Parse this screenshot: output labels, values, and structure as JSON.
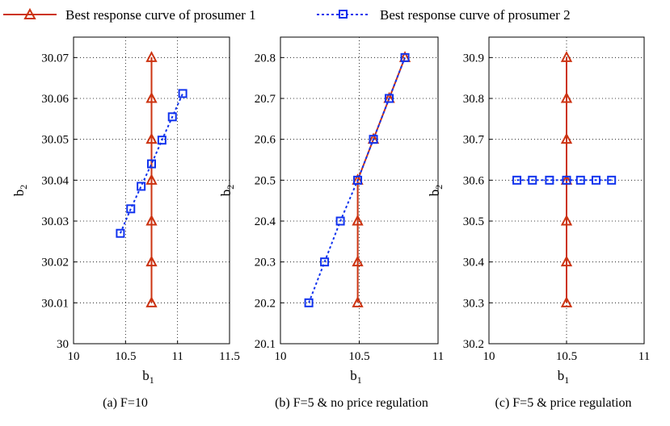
{
  "legend": {
    "entries": [
      {
        "label": "Best response curve of prosumer 1",
        "color": "#cc3311",
        "marker": "triangle",
        "line": "solid"
      },
      {
        "label": "Best response curve of prosumer 2",
        "color": "#1133ee",
        "marker": "square",
        "line": "dotted"
      }
    ]
  },
  "chart_data": [
    {
      "type": "line",
      "caption": "(a) F=10",
      "xlabel": "b",
      "xlabel_sub": "1",
      "ylabel": "b",
      "ylabel_sub": "2",
      "xlim": [
        10,
        11.5
      ],
      "ylim": [
        30,
        30.075
      ],
      "xticks": [
        10,
        10.5,
        11,
        11.5
      ],
      "xtick_labels": [
        "10",
        "10.5",
        "11",
        "11.5"
      ],
      "yticks": [
        30,
        30.01,
        30.02,
        30.03,
        30.04,
        30.05,
        30.06,
        30.07
      ],
      "ytick_labels": [
        "30",
        "30.01",
        "30.02",
        "30.03",
        "30.04",
        "30.05",
        "30.06",
        "30.07"
      ],
      "grid": true,
      "series": [
        {
          "name": "Best response curve of prosumer 1",
          "x": [
            10.75,
            10.75,
            10.75,
            10.75,
            10.75,
            10.75,
            10.75
          ],
          "y": [
            30.01,
            30.02,
            30.03,
            30.04,
            30.05,
            30.06,
            30.07
          ]
        },
        {
          "name": "Best response curve of prosumer 2",
          "x": [
            10.45,
            10.55,
            10.65,
            10.75,
            10.85,
            10.95,
            11.05
          ],
          "y": [
            30.027,
            30.033,
            30.0385,
            30.044,
            30.0498,
            30.0555,
            30.0612
          ]
        }
      ]
    },
    {
      "type": "line",
      "caption": "(b) F=5 & no price regulation",
      "xlabel": "b",
      "xlabel_sub": "1",
      "ylabel": "b",
      "ylabel_sub": "2",
      "xlim": [
        10,
        11
      ],
      "ylim": [
        20.1,
        20.85
      ],
      "xticks": [
        10,
        10.5,
        11
      ],
      "xtick_labels": [
        "10",
        "10.5",
        "11"
      ],
      "yticks": [
        20.1,
        20.2,
        20.3,
        20.4,
        20.5,
        20.6,
        20.7,
        20.8
      ],
      "ytick_labels": [
        "20.1",
        "20.2",
        "20.3",
        "20.4",
        "20.5",
        "20.6",
        "20.7",
        "20.8"
      ],
      "grid": true,
      "series": [
        {
          "name": "Best response curve of prosumer 1",
          "x": [
            10.49,
            10.49,
            10.49,
            10.49,
            10.59,
            10.69,
            10.79
          ],
          "y": [
            20.2,
            20.3,
            20.4,
            20.5,
            20.6,
            20.7,
            20.8
          ]
        },
        {
          "name": "Best response curve of prosumer 2",
          "x": [
            10.18,
            10.28,
            10.38,
            10.49,
            10.59,
            10.69,
            10.79
          ],
          "y": [
            20.2,
            20.3,
            20.4,
            20.5,
            20.6,
            20.7,
            20.8
          ]
        }
      ]
    },
    {
      "type": "line",
      "caption": "(c) F=5 & price regulation",
      "xlabel": "b",
      "xlabel_sub": "1",
      "ylabel": "b",
      "ylabel_sub": "2",
      "xlim": [
        10,
        11
      ],
      "ylim": [
        30.2,
        30.95
      ],
      "xticks": [
        10,
        10.5,
        11
      ],
      "xtick_labels": [
        "10",
        "10.5",
        "11"
      ],
      "yticks": [
        30.2,
        30.3,
        30.4,
        30.5,
        30.6,
        30.7,
        30.8,
        30.9
      ],
      "ytick_labels": [
        "30.2",
        "30.3",
        "30.4",
        "30.5",
        "30.6",
        "30.7",
        "30.8",
        "30.9"
      ],
      "grid": true,
      "series": [
        {
          "name": "Best response curve of prosumer 1",
          "x": [
            10.5,
            10.5,
            10.5,
            10.5,
            10.5,
            10.5,
            10.5
          ],
          "y": [
            30.3,
            30.4,
            30.5,
            30.6,
            30.7,
            30.8,
            30.9
          ]
        },
        {
          "name": "Best response curve of prosumer 2",
          "x": [
            10.18,
            10.28,
            10.39,
            10.5,
            10.59,
            10.69,
            10.79
          ],
          "y": [
            30.6,
            30.6,
            30.6,
            30.6,
            30.6,
            30.6,
            30.6
          ]
        }
      ]
    }
  ]
}
